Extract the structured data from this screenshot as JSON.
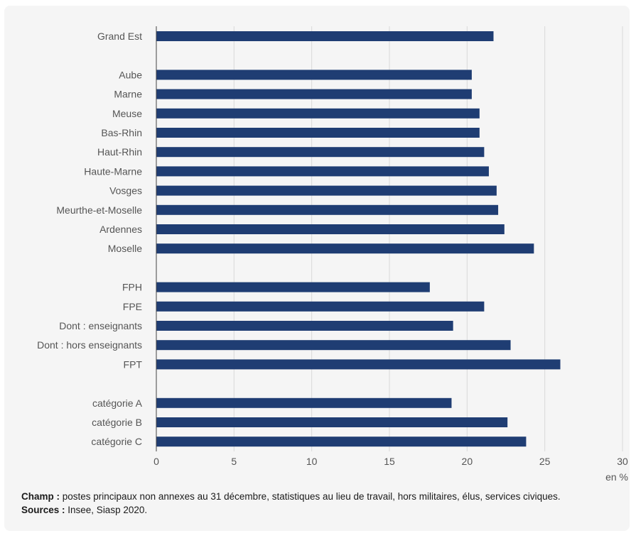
{
  "chart_data": {
    "type": "bar",
    "orientation": "horizontal",
    "categories": [
      "Grand Est",
      "",
      "Aube",
      "Marne",
      "Meuse",
      "Bas-Rhin",
      "Haut-Rhin",
      "Haute-Marne",
      "Vosges",
      "Meurthe-et-Moselle",
      "Ardennes",
      "Moselle",
      "",
      "FPH",
      "FPE",
      "Dont : enseignants",
      "Dont : hors enseignants",
      "FPT",
      "",
      "catégorie A",
      "catégorie B",
      "catégorie C"
    ],
    "values": [
      21.7,
      null,
      20.3,
      20.3,
      20.8,
      20.8,
      21.1,
      21.4,
      21.9,
      22.0,
      22.4,
      24.3,
      null,
      17.6,
      21.1,
      19.1,
      22.8,
      26.0,
      null,
      19.0,
      22.6,
      23.8
    ],
    "xlim": [
      0,
      30
    ],
    "xticks": [
      0,
      5,
      10,
      15,
      20,
      25,
      30
    ],
    "unit_label": "en %",
    "grid": "vertical",
    "bar_color": "#1f3d73"
  },
  "notes": {
    "champ_label": "Champ :",
    "champ_text": " postes principaux non annexes au 31 décembre, statistiques au lieu de travail, hors militaires, élus, services civiques.",
    "sources_label": "Sources :",
    "sources_text": " Insee, Siasp 2020."
  }
}
